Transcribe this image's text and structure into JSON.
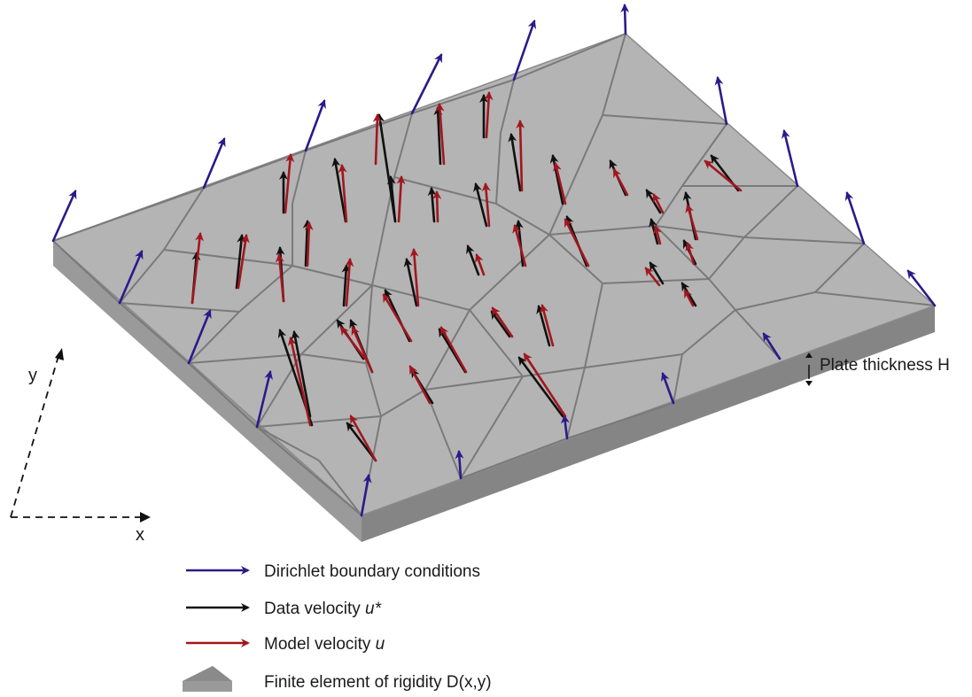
{
  "colors": {
    "boundary": "#2b1a8a",
    "data": "#111111",
    "model": "#a3161e",
    "plate_top": "#b4b4b4",
    "plate_side": "#8e8e8e",
    "mesh": "#7c7c7c"
  },
  "axes": {
    "x_label": "x",
    "y_label": "y"
  },
  "thickness_label": "Plate thickness H",
  "legend": {
    "boundary": {
      "text": "Dirichlet boundary conditions"
    },
    "data": {
      "prefix": "Data velocity ",
      "var": "u*"
    },
    "model": {
      "prefix": "Model velocity ",
      "var": "u"
    },
    "element": {
      "text": "Finite element of rigidity D(x,y)"
    }
  }
}
